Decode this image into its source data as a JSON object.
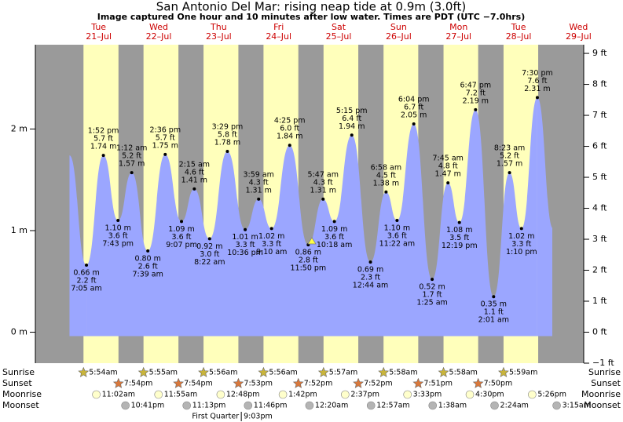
{
  "chart_data": {
    "type": "area",
    "title": "San Antonio Del Mar: rising  neap tide at 0.9m (3.0ft)",
    "subtitle": "Image captured One hour and 10 minutes after low water. Times are PDT (UTC −7.0hrs)",
    "days": [
      {
        "name": "Tue",
        "date": "21–Jul"
      },
      {
        "name": "Wed",
        "date": "22–Jul"
      },
      {
        "name": "Thu",
        "date": "23–Jul"
      },
      {
        "name": "Fri",
        "date": "24–Jul"
      },
      {
        "name": "Sat",
        "date": "25–Jul"
      },
      {
        "name": "Sun",
        "date": "26–Jul"
      },
      {
        "name": "Mon",
        "date": "27–Jul"
      },
      {
        "name": "Tue",
        "date": "28–Jul"
      },
      {
        "name": "Wed",
        "date": "29–Jul"
      }
    ],
    "ylim": [
      -0.3048,
      2.83
    ],
    "yticks": [
      {
        "value": 0,
        "label": "0 m"
      },
      {
        "value": 1,
        "label": "1 m"
      },
      {
        "value": 2,
        "label": "2 m"
      }
    ],
    "y2lim": [
      -1,
      9.28
    ],
    "y2ticks": [
      {
        "value": -1,
        "label": "−1 ft"
      },
      {
        "value": 0,
        "label": "0 ft"
      },
      {
        "value": 1,
        "label": "1 ft"
      },
      {
        "value": 2,
        "label": "2 ft"
      },
      {
        "value": 3,
        "label": "3 ft"
      },
      {
        "value": 4,
        "label": "4 ft"
      },
      {
        "value": 5,
        "label": "5 ft"
      },
      {
        "value": 6,
        "label": "6 ft"
      },
      {
        "value": 7,
        "label": "7 ft"
      },
      {
        "value": 8,
        "label": "8 ft"
      },
      {
        "value": 9,
        "label": "9 ft"
      }
    ],
    "color": "#9ba6ff",
    "tide": {
      "times": [
        "7:05 am",
        "1:52 pm",
        "7:43 pm",
        "1:12 am",
        "7:39 am",
        "2:36 pm",
        "9:07 pm",
        "2:15 am",
        "8:22 am",
        "3:29 pm",
        "10:36 pm",
        "3:59 am",
        "9:10 am",
        "4:25 pm",
        "11:50 pm",
        "5:47 am",
        "10:18 am",
        "5:15 pm",
        "12:44 am",
        "6:58 am",
        "11:22 am",
        "6:04 pm",
        "1:25 am",
        "7:45 am",
        "12:19 pm",
        "6:47 pm",
        "2:01 am",
        "8:23 am",
        "1:10 pm",
        "7:30 pm"
      ],
      "values": [
        0.66,
        1.74,
        1.1,
        1.57,
        0.8,
        1.75,
        1.09,
        1.41,
        0.92,
        1.78,
        1.01,
        1.31,
        1.02,
        1.84,
        0.86,
        1.31,
        1.09,
        1.94,
        0.69,
        1.38,
        1.1,
        2.05,
        0.52,
        1.47,
        1.08,
        2.19,
        0.35,
        1.57,
        1.02,
        2.31
      ],
      "value_labels": [
        "0.66 m",
        "1.74 m",
        "1.10 m",
        "1.57 m",
        "0.80 m",
        "1.75 m",
        "1.09 m",
        "1.41 m",
        "0.92 m",
        "1.78 m",
        "1.01 m",
        "1.31 m",
        "1.02 m",
        "1.84 m",
        "0.86 m",
        "1.31 m",
        "1.09 m",
        "1.94 m",
        "0.69 m",
        "1.38 m",
        "1.10 m",
        "2.05 m",
        "0.52 m",
        "1.47 m",
        "1.08 m",
        "2.19 m",
        "0.35 m",
        "1.57 m",
        "1.02 m",
        "2.31 m"
      ],
      "ft_labels": [
        "2.2 ft",
        "5.7 ft",
        "3.6 ft",
        "5.2 ft",
        "2.6 ft",
        "5.7 ft",
        "3.6 ft",
        "4.6 ft",
        "3.0 ft",
        "5.8 ft",
        "3.3 ft",
        "4.3 ft",
        "3.3 ft",
        "6.0 ft",
        "2.8 ft",
        "4.3 ft",
        "3.6 ft",
        "6.4 ft",
        "2.3 ft",
        "4.5 ft",
        "3.6 ft",
        "6.7 ft",
        "1.7 ft",
        "4.8 ft",
        "3.5 ft",
        "7.2 ft",
        "1.1 ft",
        "5.2 ft",
        "3.3 ft",
        "7.6 ft"
      ]
    },
    "rows": [
      {
        "label": "Sunrise",
        "color": "#c8b43c",
        "times": [
          "5:54am",
          "5:55am",
          "5:56am",
          "5:56am",
          "5:57am",
          "5:58am",
          "5:58am",
          "5:59am"
        ]
      },
      {
        "label": "Sunset",
        "color": "#d8783c",
        "times": [
          "7:54pm",
          "7:54pm",
          "7:53pm",
          "7:52pm",
          "7:52pm",
          "7:51pm",
          "7:50pm"
        ]
      },
      {
        "label": "Moonrise",
        "color": "#ffffcc",
        "times": [
          "11:02am",
          "11:55am",
          "12:48pm",
          "1:42pm",
          "2:37pm",
          "3:33pm",
          "4:30pm",
          "5:26pm"
        ]
      },
      {
        "label": "Moonset",
        "color": "#b4b4b4",
        "times": [
          "10:41pm",
          "11:13pm",
          "11:46pm",
          "12:20am",
          "12:57am",
          "1:38am",
          "2:24am",
          "3:15am"
        ]
      }
    ],
    "moon_phase": {
      "name": "First Quarter",
      "time": "9:03pm"
    }
  }
}
